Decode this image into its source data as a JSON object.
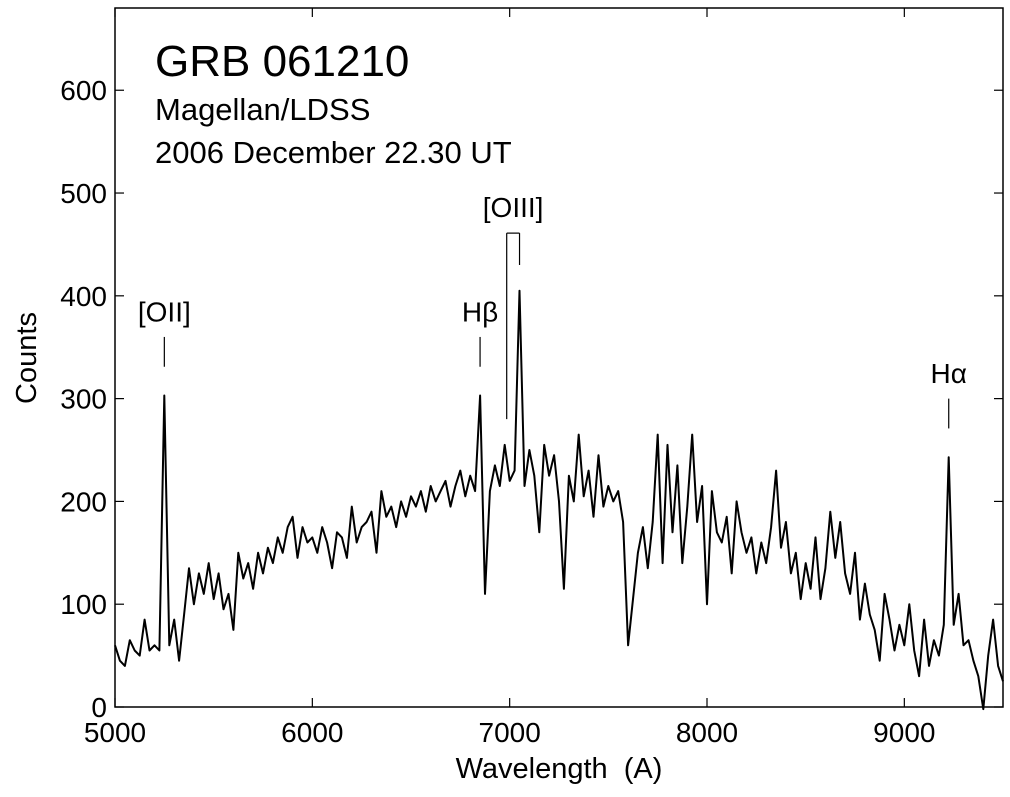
{
  "chart_data": {
    "type": "line",
    "title": "GRB 061210",
    "subtitle": [
      "Magellan/LDSS",
      "2006 December 22.30 UT"
    ],
    "x_label": "Wavelength  (A)",
    "y_label": "Counts",
    "color": "#000000",
    "xlim": [
      5000,
      9500
    ],
    "ylim": [
      0,
      680
    ],
    "xticks": [
      5000,
      6000,
      7000,
      8000,
      9000
    ],
    "yticks": [
      0,
      100,
      200,
      300,
      400,
      500,
      600
    ],
    "annotations": [
      {
        "text": "[OII]",
        "x": [
          5250
        ]
      },
      {
        "text": "Hβ",
        "x": [
          6850
        ]
      },
      {
        "text": "[OIII]",
        "x": [
          6985,
          7050
        ]
      },
      {
        "text": "Hα",
        "x": [
          9225
        ]
      }
    ],
    "x": [
      5000,
      5025,
      5050,
      5075,
      5100,
      5125,
      5150,
      5175,
      5200,
      5225,
      5250,
      5275,
      5300,
      5325,
      5350,
      5375,
      5400,
      5425,
      5450,
      5475,
      5500,
      5525,
      5550,
      5575,
      5600,
      5625,
      5650,
      5675,
      5700,
      5725,
      5750,
      5775,
      5800,
      5825,
      5850,
      5875,
      5900,
      5925,
      5950,
      5975,
      6000,
      6025,
      6050,
      6075,
      6100,
      6125,
      6150,
      6175,
      6200,
      6225,
      6250,
      6275,
      6300,
      6325,
      6350,
      6375,
      6400,
      6425,
      6450,
      6475,
      6500,
      6525,
      6550,
      6575,
      6600,
      6625,
      6650,
      6675,
      6700,
      6725,
      6750,
      6775,
      6800,
      6825,
      6850,
      6875,
      6900,
      6925,
      6950,
      6975,
      7000,
      7025,
      7050,
      7075,
      7100,
      7125,
      7150,
      7175,
      7200,
      7225,
      7250,
      7275,
      7300,
      7325,
      7350,
      7375,
      7400,
      7425,
      7450,
      7475,
      7500,
      7525,
      7550,
      7575,
      7600,
      7625,
      7650,
      7675,
      7700,
      7725,
      7750,
      7775,
      7800,
      7825,
      7850,
      7875,
      7900,
      7925,
      7950,
      7975,
      8000,
      8025,
      8050,
      8075,
      8100,
      8125,
      8150,
      8175,
      8200,
      8225,
      8250,
      8275,
      8300,
      8325,
      8350,
      8375,
      8400,
      8425,
      8450,
      8475,
      8500,
      8525,
      8550,
      8575,
      8600,
      8625,
      8650,
      8675,
      8700,
      8725,
      8750,
      8775,
      8800,
      8825,
      8850,
      8875,
      8900,
      8925,
      8950,
      8975,
      9000,
      9025,
      9050,
      9075,
      9100,
      9125,
      9150,
      9175,
      9200,
      9225,
      9250,
      9275,
      9300,
      9325,
      9350,
      9375,
      9400,
      9425,
      9450,
      9475,
      9500
    ],
    "values": [
      60,
      45,
      40,
      65,
      55,
      50,
      85,
      55,
      60,
      55,
      303,
      60,
      85,
      45,
      90,
      135,
      100,
      130,
      110,
      140,
      105,
      130,
      95,
      110,
      75,
      150,
      125,
      140,
      115,
      150,
      130,
      155,
      140,
      165,
      150,
      175,
      185,
      145,
      175,
      160,
      165,
      150,
      175,
      160,
      135,
      170,
      165,
      145,
      195,
      160,
      175,
      180,
      190,
      150,
      210,
      185,
      195,
      175,
      200,
      185,
      205,
      195,
      210,
      190,
      215,
      200,
      210,
      220,
      195,
      215,
      230,
      205,
      225,
      210,
      303,
      110,
      210,
      235,
      215,
      255,
      220,
      230,
      405,
      215,
      250,
      225,
      170,
      255,
      225,
      245,
      200,
      115,
      225,
      200,
      265,
      205,
      230,
      185,
      245,
      195,
      215,
      200,
      210,
      180,
      60,
      105,
      150,
      175,
      135,
      180,
      265,
      140,
      255,
      170,
      235,
      140,
      195,
      265,
      180,
      215,
      100,
      210,
      170,
      160,
      185,
      130,
      200,
      170,
      150,
      165,
      130,
      160,
      140,
      175,
      230,
      155,
      180,
      130,
      150,
      105,
      140,
      115,
      165,
      105,
      135,
      190,
      145,
      180,
      130,
      110,
      150,
      85,
      120,
      90,
      75,
      45,
      110,
      85,
      55,
      80,
      60,
      100,
      55,
      30,
      85,
      40,
      65,
      50,
      80,
      243,
      80,
      110,
      60,
      65,
      45,
      30,
      -2,
      50,
      85,
      40,
      25
    ]
  }
}
